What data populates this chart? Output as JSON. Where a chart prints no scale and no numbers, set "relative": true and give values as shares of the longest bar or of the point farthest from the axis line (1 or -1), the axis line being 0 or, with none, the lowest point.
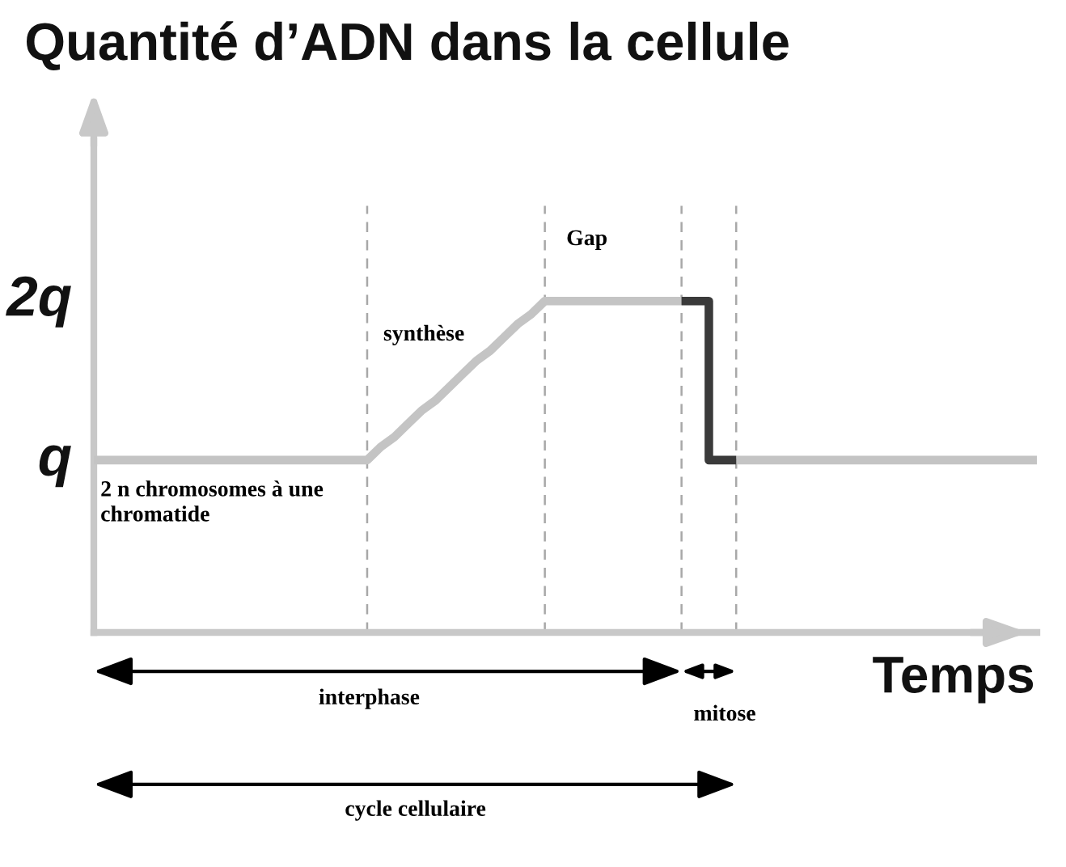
{
  "chart_data": {
    "type": "line",
    "title": "Quantité d’ADN dans la cellule",
    "xlabel": "Temps",
    "relative": true,
    "grid": "x",
    "categories": [
      null,
      null,
      null,
      null,
      null,
      null,
      null,
      null,
      null,
      null,
      null,
      null,
      null,
      null,
      null,
      null,
      null,
      null,
      null,
      null,
      null,
      null,
      null,
      null,
      null,
      null,
      null,
      null,
      null,
      null,
      null,
      null,
      null,
      null,
      null,
      null,
      null,
      null,
      null,
      null,
      null,
      null,
      null,
      null,
      null,
      null,
      null,
      null,
      null,
      null,
      null,
      null,
      null,
      null,
      null,
      null,
      null,
      null,
      null,
      null,
      null,
      null,
      null,
      null,
      null,
      null,
      null,
      null,
      null,
      null
    ],
    "series": [
      {
        "color": "#c4c4c4",
        "values": [
          0.52,
          0.52,
          0.52,
          0.52,
          0.52,
          0.52,
          0.52,
          0.52,
          0.52,
          0.52,
          0.52,
          0.52,
          0.52,
          0.52,
          0.52,
          0.52,
          0.52,
          0.52,
          0.52,
          0.52,
          0.52,
          0.56,
          0.59,
          0.63,
          0.67,
          0.7,
          0.74,
          0.78,
          0.82,
          0.85,
          0.89,
          0.93,
          0.96,
          1,
          1,
          1,
          1,
          1,
          1,
          1,
          1,
          1,
          1,
          1,
          null,
          null,
          null,
          0.52,
          0.52,
          0.52,
          0.52,
          0.52,
          0.52,
          0.52,
          0.52,
          0.52,
          0.52,
          0.52,
          0.52,
          0.52,
          0.52,
          0.52,
          0.52,
          0.52,
          0.52,
          0.52,
          0.52,
          0.52,
          0.52,
          0.52
        ]
      },
      {
        "type": "step",
        "color": "#3a3a3a",
        "values": [
          null,
          null,
          null,
          null,
          null,
          null,
          null,
          null,
          null,
          null,
          null,
          null,
          null,
          null,
          null,
          null,
          null,
          null,
          null,
          null,
          null,
          null,
          null,
          null,
          null,
          null,
          null,
          null,
          null,
          null,
          null,
          null,
          null,
          null,
          null,
          null,
          null,
          null,
          null,
          null,
          null,
          null,
          null,
          1,
          1,
          0.52,
          0.52,
          0.52,
          null,
          null,
          null,
          null,
          null,
          null,
          null,
          null,
          null,
          null,
          null,
          null,
          null,
          null,
          null,
          null,
          null,
          null,
          null,
          null,
          null,
          null
        ]
      }
    ],
    "line_style": "solid",
    "annotations": [
      "synthèse",
      "Gap",
      "2 n chromosomes à une\nchromatide",
      "interphase",
      "mitose",
      "cycle cellulaire",
      "2q",
      "q"
    ]
  }
}
